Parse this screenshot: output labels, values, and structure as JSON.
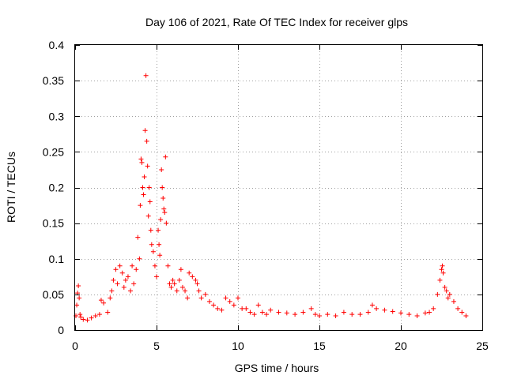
{
  "chart_data": {
    "type": "scatter",
    "title": "Day 106 of 2021, Rate Of TEC Index for receiver glps",
    "xlabel": "GPS time / hours",
    "ylabel": "ROTI / TECUs",
    "xlim": [
      0,
      25
    ],
    "ylim": [
      0,
      0.4
    ],
    "xticks": [
      0,
      5,
      10,
      15,
      20,
      25
    ],
    "xtick_labels": [
      "0",
      "5",
      "10",
      "15",
      "20",
      "25"
    ],
    "yticks": [
      0,
      0.05,
      0.1,
      0.15,
      0.2,
      0.25,
      0.3,
      0.35,
      0.4
    ],
    "ytick_labels": [
      "0",
      "0.05",
      "0.1",
      "0.15",
      "0.2",
      "0.25",
      "0.3",
      "0.35",
      "0.4"
    ],
    "grid": true,
    "marker": "+",
    "color": "#ff0000",
    "series": [
      {
        "name": "ROTI",
        "x": [
          0.05,
          0.1,
          0.15,
          0.2,
          0.25,
          0.3,
          0.35,
          0.5,
          0.75,
          1.0,
          1.25,
          1.5,
          1.6,
          1.75,
          2.0,
          2.15,
          2.25,
          2.35,
          2.5,
          2.6,
          2.75,
          2.9,
          3.0,
          3.1,
          3.25,
          3.4,
          3.5,
          3.6,
          3.75,
          3.85,
          3.95,
          4.0,
          4.05,
          4.1,
          4.15,
          4.2,
          4.25,
          4.3,
          4.35,
          4.4,
          4.45,
          4.5,
          4.55,
          4.6,
          4.65,
          4.7,
          4.8,
          4.9,
          5.0,
          5.1,
          5.15,
          5.2,
          5.25,
          5.3,
          5.35,
          5.4,
          5.45,
          5.5,
          5.55,
          5.6,
          5.7,
          5.8,
          5.9,
          6.0,
          6.1,
          6.25,
          6.4,
          6.5,
          6.6,
          6.75,
          6.9,
          7.0,
          7.2,
          7.4,
          7.5,
          7.6,
          7.75,
          8.0,
          8.25,
          8.5,
          8.75,
          9.0,
          9.25,
          9.5,
          9.75,
          10.0,
          10.25,
          10.5,
          10.75,
          11.0,
          11.25,
          11.5,
          11.75,
          12.0,
          12.5,
          13.0,
          13.5,
          14.0,
          14.5,
          14.75,
          15.0,
          15.5,
          16.0,
          16.5,
          17.0,
          17.5,
          18.0,
          18.25,
          18.5,
          19.0,
          19.5,
          20.0,
          20.5,
          21.0,
          21.5,
          21.75,
          22.0,
          22.25,
          22.4,
          22.5,
          22.55,
          22.6,
          22.7,
          22.8,
          22.9,
          23.0,
          23.25,
          23.5,
          23.75,
          24.0
        ],
        "y": [
          0.02,
          0.035,
          0.052,
          0.062,
          0.045,
          0.022,
          0.018,
          0.015,
          0.014,
          0.017,
          0.02,
          0.022,
          0.042,
          0.038,
          0.025,
          0.045,
          0.055,
          0.07,
          0.085,
          0.065,
          0.09,
          0.08,
          0.06,
          0.07,
          0.075,
          0.055,
          0.09,
          0.065,
          0.085,
          0.13,
          0.1,
          0.175,
          0.24,
          0.235,
          0.2,
          0.19,
          0.215,
          0.28,
          0.357,
          0.265,
          0.23,
          0.16,
          0.2,
          0.18,
          0.14,
          0.12,
          0.11,
          0.09,
          0.075,
          0.14,
          0.12,
          0.105,
          0.155,
          0.225,
          0.2,
          0.185,
          0.17,
          0.165,
          0.243,
          0.15,
          0.09,
          0.065,
          0.06,
          0.07,
          0.065,
          0.055,
          0.07,
          0.085,
          0.06,
          0.055,
          0.045,
          0.08,
          0.075,
          0.07,
          0.065,
          0.055,
          0.045,
          0.05,
          0.04,
          0.035,
          0.03,
          0.028,
          0.045,
          0.04,
          0.035,
          0.045,
          0.03,
          0.03,
          0.025,
          0.022,
          0.035,
          0.025,
          0.022,
          0.028,
          0.025,
          0.024,
          0.022,
          0.025,
          0.03,
          0.022,
          0.02,
          0.022,
          0.02,
          0.025,
          0.022,
          0.022,
          0.025,
          0.035,
          0.03,
          0.028,
          0.026,
          0.024,
          0.022,
          0.02,
          0.024,
          0.025,
          0.03,
          0.05,
          0.07,
          0.085,
          0.09,
          0.08,
          0.06,
          0.055,
          0.045,
          0.05,
          0.04,
          0.03,
          0.025,
          0.02
        ]
      }
    ]
  }
}
